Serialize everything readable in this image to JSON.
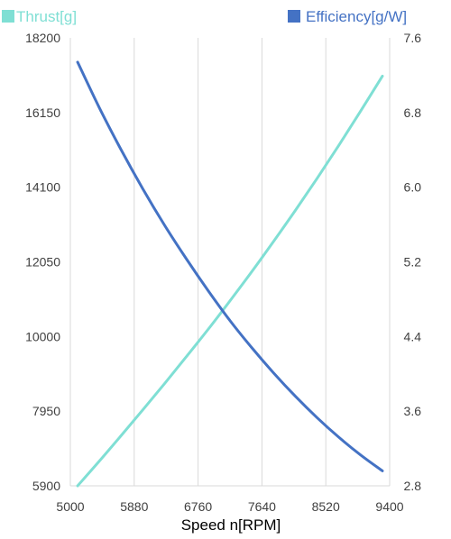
{
  "chart_data": {
    "type": "line",
    "xlabel": "Speed n[RPM]",
    "x_ticks": [
      "5000",
      "5880",
      "6760",
      "7640",
      "8520",
      "9400"
    ],
    "xlim": [
      5000,
      9400
    ],
    "y_left_ticks": [
      "5900",
      "7950",
      "10000",
      "12050",
      "14100",
      "16150",
      "18200"
    ],
    "ylim_left": [
      5900,
      18200
    ],
    "y_right_ticks": [
      "2.8",
      "3.6",
      "4.4",
      "5.2",
      "6.0",
      "6.8",
      "7.6"
    ],
    "ylim_right": [
      2.8,
      7.6
    ],
    "grid": "vertical",
    "legend": "top",
    "series": [
      {
        "name": "Thrust[g]",
        "axis": "left",
        "color": "#7fdfd4",
        "x": [
          5100,
          5400,
          5700,
          6000,
          6300,
          6600,
          6900,
          7200,
          7500,
          7800,
          8100,
          8400,
          8700,
          9000,
          9300
        ],
        "y": [
          5900,
          6580,
          7280,
          7990,
          8710,
          9450,
          10200,
          10980,
          11780,
          12610,
          13460,
          14340,
          15250,
          16190,
          17150
        ]
      },
      {
        "name": "Efficiency[g/W]",
        "axis": "right",
        "color": "#4472c4",
        "x": [
          5100,
          5400,
          5700,
          6000,
          6300,
          6600,
          6900,
          7200,
          7500,
          7800,
          8100,
          8400,
          8700,
          9000,
          9300
        ],
        "y": [
          7.34,
          6.85,
          6.4,
          5.98,
          5.59,
          5.23,
          4.89,
          4.57,
          4.28,
          4.01,
          3.76,
          3.53,
          3.32,
          3.13,
          2.96
        ]
      }
    ]
  }
}
